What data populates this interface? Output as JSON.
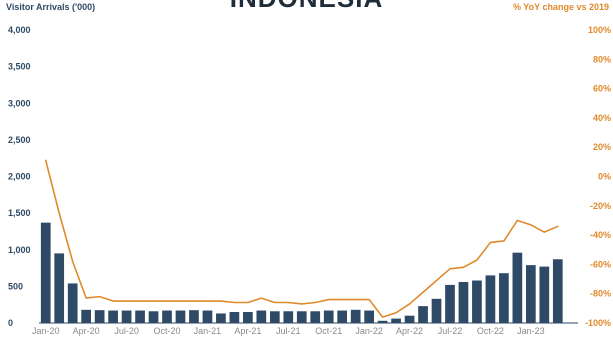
{
  "chart_data": {
    "type": "bar",
    "title": "INDONESIA",
    "ylabel": "Visitor Arrivals ('000)",
    "y2label": "% YoY change vs 2019",
    "ylim": [
      0,
      4000
    ],
    "y2lim": [
      -100,
      100
    ],
    "y_ticks": [
      "0",
      "500",
      "1,000",
      "1,500",
      "2,000",
      "2,500",
      "3,000",
      "3,500",
      "4,000"
    ],
    "y2_ticks": [
      "-100%",
      "-80%",
      "-60%",
      "-40%",
      "-20%",
      "0%",
      "20%",
      "40%",
      "60%",
      "80%",
      "100%"
    ],
    "x_tick_labels": [
      "Jan-20",
      "Apr-20",
      "Jul-20",
      "Oct-20",
      "Jan-21",
      "Apr-21",
      "Jul-21",
      "Oct-21",
      "Jan-22",
      "Apr-22",
      "Jul-22",
      "Oct-22",
      "Jan-23"
    ],
    "categories": [
      "Jan-20",
      "Feb-20",
      "Mar-20",
      "Apr-20",
      "May-20",
      "Jun-20",
      "Jul-20",
      "Aug-20",
      "Sep-20",
      "Oct-20",
      "Nov-20",
      "Dec-20",
      "Jan-21",
      "Feb-21",
      "Mar-21",
      "Apr-21",
      "May-21",
      "Jun-21",
      "Jul-21",
      "Aug-21",
      "Sep-21",
      "Oct-21",
      "Nov-21",
      "Dec-21",
      "Jan-22",
      "Feb-22",
      "Mar-22",
      "Apr-22",
      "May-22",
      "Jun-22",
      "Jul-22",
      "Aug-22",
      "Sep-22",
      "Oct-22",
      "Nov-22",
      "Dec-22",
      "Jan-23",
      "Feb-23",
      "Mar-23",
      "Apr-23"
    ],
    "series": [
      {
        "type": "bar",
        "color": "#2e4a66",
        "values": [
          1370,
          950,
          540,
          180,
          175,
          170,
          170,
          170,
          160,
          170,
          170,
          175,
          170,
          130,
          150,
          150,
          170,
          160,
          160,
          160,
          160,
          170,
          170,
          180,
          170,
          30,
          60,
          100,
          230,
          330,
          520,
          560,
          580,
          650,
          680,
          960,
          790,
          770,
          870,
          0
        ]
      },
      {
        "type": "line",
        "color": "#e08a2c",
        "values": [
          11,
          -25,
          -58,
          -83,
          -82,
          -85,
          -85,
          -85,
          -85,
          -85,
          -85,
          -85,
          -85,
          -85,
          -86,
          -86,
          -83,
          -86,
          -86,
          -87,
          -86,
          -84,
          -84,
          -84,
          -84,
          -96,
          -93,
          -87,
          -79,
          -71,
          -63,
          -62,
          -57,
          -45,
          -44,
          -30,
          -33,
          -38,
          -34,
          null
        ]
      }
    ]
  }
}
